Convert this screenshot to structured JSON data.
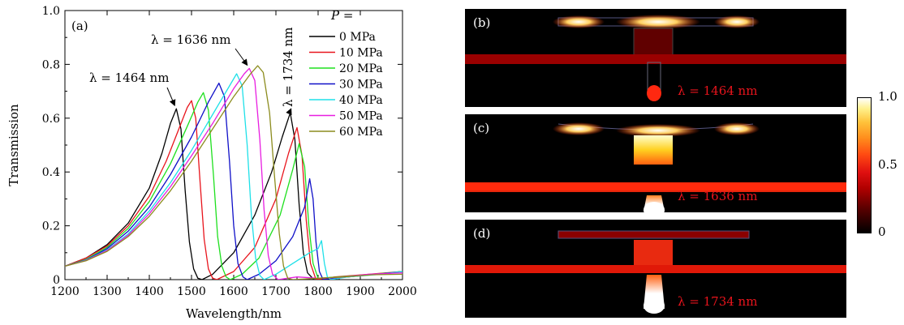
{
  "chart_data": {
    "type": "line",
    "panel_label": "(a)",
    "xlabel": "Wavelength/nm",
    "ylabel": "Transmission",
    "xlim": [
      1200,
      2000
    ],
    "ylim": [
      0,
      1.0
    ],
    "x_ticks": [
      "1200",
      "1300",
      "1400",
      "1500",
      "1600",
      "1700",
      "1800",
      "1900",
      "2000"
    ],
    "y_ticks": [
      "0",
      "0.2",
      "0.4",
      "0.6",
      "0.8",
      "1.0"
    ],
    "legend_title": "P =",
    "legend_position": "top-right",
    "series": [
      {
        "name": "0 MPa",
        "color": "#000000",
        "points": [
          [
            1200,
            0.05
          ],
          [
            1250,
            0.08
          ],
          [
            1300,
            0.13
          ],
          [
            1350,
            0.21
          ],
          [
            1400,
            0.34
          ],
          [
            1430,
            0.47
          ],
          [
            1450,
            0.58
          ],
          [
            1464,
            0.635
          ],
          [
            1475,
            0.56
          ],
          [
            1485,
            0.33
          ],
          [
            1495,
            0.14
          ],
          [
            1505,
            0.04
          ],
          [
            1515,
            0.005
          ],
          [
            1525,
            0.0
          ],
          [
            1550,
            0.02
          ],
          [
            1600,
            0.1
          ],
          [
            1650,
            0.24
          ],
          [
            1690,
            0.4
          ],
          [
            1715,
            0.53
          ],
          [
            1734,
            0.62
          ],
          [
            1745,
            0.52
          ],
          [
            1755,
            0.28
          ],
          [
            1765,
            0.1
          ],
          [
            1775,
            0.025
          ],
          [
            1790,
            0.0
          ],
          [
            1820,
            0.005
          ],
          [
            1870,
            0.01
          ],
          [
            1940,
            0.02
          ],
          [
            2000,
            0.03
          ]
        ]
      },
      {
        "name": "10 MPa",
        "color": "#e8141c",
        "points": [
          [
            1200,
            0.05
          ],
          [
            1250,
            0.08
          ],
          [
            1300,
            0.125
          ],
          [
            1350,
            0.2
          ],
          [
            1400,
            0.31
          ],
          [
            1440,
            0.44
          ],
          [
            1470,
            0.56
          ],
          [
            1490,
            0.64
          ],
          [
            1500,
            0.665
          ],
          [
            1510,
            0.6
          ],
          [
            1520,
            0.37
          ],
          [
            1530,
            0.15
          ],
          [
            1540,
            0.04
          ],
          [
            1550,
            0.005
          ],
          [
            1560,
            0.0
          ],
          [
            1600,
            0.03
          ],
          [
            1650,
            0.12
          ],
          [
            1700,
            0.3
          ],
          [
            1730,
            0.47
          ],
          [
            1750,
            0.565
          ],
          [
            1762,
            0.46
          ],
          [
            1772,
            0.22
          ],
          [
            1782,
            0.06
          ],
          [
            1795,
            0.0
          ],
          [
            1840,
            0.01
          ],
          [
            1920,
            0.02
          ],
          [
            2000,
            0.03
          ]
        ]
      },
      {
        "name": "20 MPa",
        "color": "#1ee01e",
        "points": [
          [
            1200,
            0.05
          ],
          [
            1250,
            0.075
          ],
          [
            1300,
            0.12
          ],
          [
            1350,
            0.19
          ],
          [
            1400,
            0.29
          ],
          [
            1450,
            0.43
          ],
          [
            1490,
            0.57
          ],
          [
            1515,
            0.66
          ],
          [
            1528,
            0.695
          ],
          [
            1540,
            0.63
          ],
          [
            1552,
            0.39
          ],
          [
            1562,
            0.16
          ],
          [
            1572,
            0.05
          ],
          [
            1582,
            0.01
          ],
          [
            1592,
            0.0
          ],
          [
            1620,
            0.02
          ],
          [
            1660,
            0.08
          ],
          [
            1710,
            0.24
          ],
          [
            1740,
            0.41
          ],
          [
            1755,
            0.505
          ],
          [
            1768,
            0.42
          ],
          [
            1778,
            0.2
          ],
          [
            1788,
            0.06
          ],
          [
            1800,
            0.005
          ],
          [
            1850,
            0.01
          ],
          [
            1930,
            0.02
          ],
          [
            2000,
            0.03
          ]
        ]
      },
      {
        "name": "30 MPa",
        "color": "#1010c8",
        "points": [
          [
            1200,
            0.05
          ],
          [
            1250,
            0.073
          ],
          [
            1300,
            0.115
          ],
          [
            1350,
            0.18
          ],
          [
            1400,
            0.27
          ],
          [
            1450,
            0.39
          ],
          [
            1500,
            0.53
          ],
          [
            1540,
            0.66
          ],
          [
            1565,
            0.73
          ],
          [
            1578,
            0.68
          ],
          [
            1590,
            0.44
          ],
          [
            1600,
            0.2
          ],
          [
            1610,
            0.06
          ],
          [
            1622,
            0.01
          ],
          [
            1632,
            0.0
          ],
          [
            1660,
            0.02
          ],
          [
            1700,
            0.07
          ],
          [
            1740,
            0.16
          ],
          [
            1768,
            0.27
          ],
          [
            1780,
            0.375
          ],
          [
            1788,
            0.3
          ],
          [
            1795,
            0.14
          ],
          [
            1803,
            0.03
          ],
          [
            1812,
            0.0
          ],
          [
            1860,
            0.01
          ],
          [
            1940,
            0.02
          ],
          [
            2000,
            0.03
          ]
        ]
      },
      {
        "name": "40 MPa",
        "color": "#1ee0e8",
        "points": [
          [
            1200,
            0.05
          ],
          [
            1250,
            0.072
          ],
          [
            1300,
            0.11
          ],
          [
            1350,
            0.17
          ],
          [
            1400,
            0.255
          ],
          [
            1450,
            0.36
          ],
          [
            1500,
            0.48
          ],
          [
            1560,
            0.64
          ],
          [
            1590,
            0.72
          ],
          [
            1607,
            0.765
          ],
          [
            1620,
            0.72
          ],
          [
            1632,
            0.5
          ],
          [
            1642,
            0.24
          ],
          [
            1652,
            0.08
          ],
          [
            1662,
            0.015
          ],
          [
            1672,
            0.0
          ],
          [
            1700,
            0.02
          ],
          [
            1740,
            0.06
          ],
          [
            1780,
            0.1
          ],
          [
            1800,
            0.115
          ],
          [
            1808,
            0.145
          ],
          [
            1815,
            0.06
          ],
          [
            1822,
            0.01
          ],
          [
            1830,
            0.0
          ],
          [
            1870,
            0.01
          ],
          [
            1950,
            0.02
          ],
          [
            2000,
            0.03
          ]
        ]
      },
      {
        "name": "50 MPa",
        "color": "#e81ee0",
        "points": [
          [
            1200,
            0.05
          ],
          [
            1250,
            0.071
          ],
          [
            1300,
            0.108
          ],
          [
            1350,
            0.165
          ],
          [
            1400,
            0.245
          ],
          [
            1450,
            0.345
          ],
          [
            1500,
            0.46
          ],
          [
            1550,
            0.58
          ],
          [
            1600,
            0.71
          ],
          [
            1625,
            0.765
          ],
          [
            1637,
            0.785
          ],
          [
            1650,
            0.74
          ],
          [
            1662,
            0.52
          ],
          [
            1672,
            0.26
          ],
          [
            1682,
            0.09
          ],
          [
            1692,
            0.02
          ],
          [
            1705,
            0.0
          ],
          [
            1750,
            0.01
          ],
          [
            1800,
            0.005
          ],
          [
            1850,
            0.008
          ],
          [
            1920,
            0.02
          ],
          [
            2000,
            0.025
          ]
        ]
      },
      {
        "name": "60 MPa",
        "color": "#8c8c1e",
        "points": [
          [
            1200,
            0.05
          ],
          [
            1250,
            0.07
          ],
          [
            1300,
            0.105
          ],
          [
            1350,
            0.16
          ],
          [
            1400,
            0.235
          ],
          [
            1450,
            0.33
          ],
          [
            1500,
            0.44
          ],
          [
            1550,
            0.56
          ],
          [
            1600,
            0.68
          ],
          [
            1640,
            0.765
          ],
          [
            1657,
            0.795
          ],
          [
            1670,
            0.77
          ],
          [
            1685,
            0.62
          ],
          [
            1697,
            0.38
          ],
          [
            1708,
            0.17
          ],
          [
            1718,
            0.05
          ],
          [
            1728,
            0.005
          ],
          [
            1740,
            0.0
          ],
          [
            1800,
            0.005
          ],
          [
            1860,
            0.01
          ],
          [
            1930,
            0.018
          ],
          [
            2000,
            0.02
          ]
        ]
      }
    ],
    "annotations": [
      {
        "text": "λ = 1464 nm",
        "x": 1464,
        "y": 0.635,
        "rotated": false
      },
      {
        "text": "λ = 1636 nm",
        "x": 1636,
        "y": 0.785,
        "rotated": false
      },
      {
        "text": "λ = 1734 nm",
        "x": 1734,
        "y": 0.62,
        "rotated": true
      }
    ]
  },
  "field_panels": [
    {
      "label": "(b)",
      "wavelength_label": "λ = 1464 nm"
    },
    {
      "label": "(c)",
      "wavelength_label": "λ = 1636 nm"
    },
    {
      "label": "(d)",
      "wavelength_label": "λ = 1734 nm"
    }
  ],
  "colorbar": {
    "max_label": "1.0",
    "mid_label": "0.5",
    "min_label": "0"
  }
}
